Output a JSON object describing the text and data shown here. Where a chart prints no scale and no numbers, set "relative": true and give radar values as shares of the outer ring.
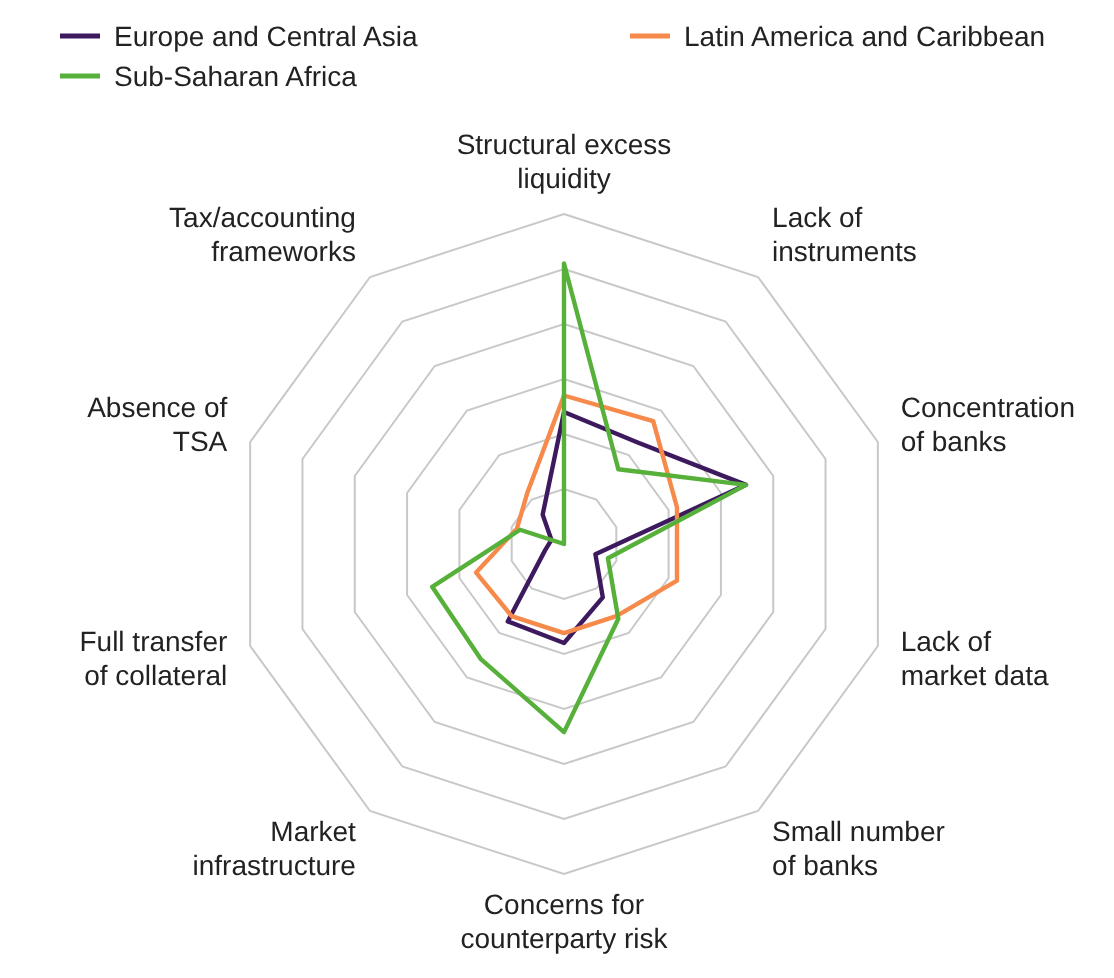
{
  "chart_data": {
    "type": "radar",
    "relative": true,
    "legend": "top",
    "categories": [
      "Structural excess liquidity",
      "Lack of instruments",
      "Concentration of banks",
      "Lack of market data",
      "Small number of banks",
      "Concerns for counterparty risk",
      "Market infrastructure",
      "Full transfer of collateral",
      "Absence of TSA",
      "Tax/accounting frameworks"
    ],
    "series": [
      {
        "name": "Europe and Central Asia",
        "color": "#3d1a5e",
        "values": [
          0.4,
          0.38,
          0.58,
          0.1,
          0.2,
          0.3,
          0.29,
          0.06,
          0.04,
          0.11
        ]
      },
      {
        "name": "Latin America and Caribbean",
        "color": "#f58a4b",
        "values": [
          0.45,
          0.46,
          0.36,
          0.36,
          0.27,
          0.27,
          0.27,
          0.28,
          0.15,
          0.19
        ]
      },
      {
        "name": "Sub-Saharan Africa",
        "color": "#56b03a",
        "values": [
          0.85,
          0.28,
          0.58,
          0.14,
          0.28,
          0.57,
          0.43,
          0.42,
          0.14,
          0
        ]
      }
    ]
  }
}
